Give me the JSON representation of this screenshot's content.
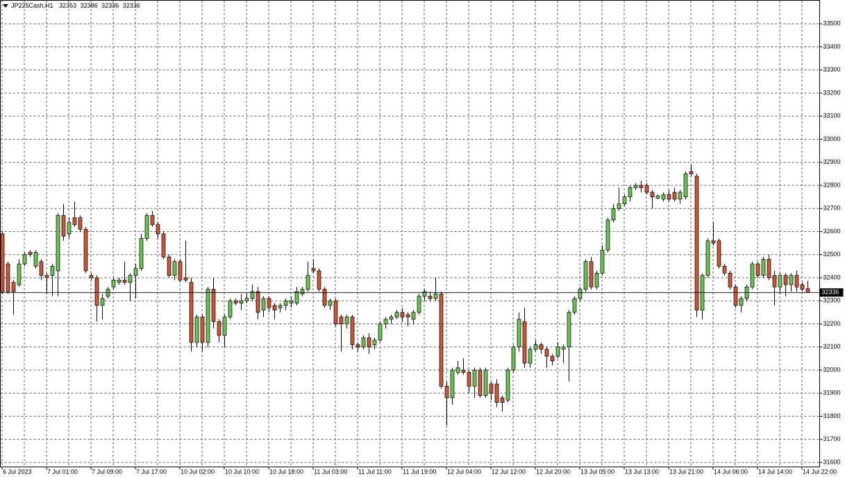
{
  "chart_data": {
    "type": "candlestick",
    "symbol": "JP225Cash,H1",
    "categories": [
      "6 Jul 2023",
      null,
      null,
      null,
      null,
      null,
      null,
      null,
      "7 Jul 01:00",
      null,
      null,
      null,
      null,
      null,
      null,
      null,
      "7 Jul 09:00",
      null,
      null,
      null,
      null,
      null,
      null,
      null,
      "7 Jul 17:00",
      null,
      null,
      null,
      null,
      null,
      null,
      null,
      "10 Jul 02:00",
      null,
      null,
      null,
      null,
      null,
      null,
      null,
      "10 Jul 10:00",
      null,
      null,
      null,
      null,
      null,
      null,
      null,
      "10 Jul 18:00",
      null,
      null,
      null,
      null,
      null,
      null,
      null,
      "11 Jul 03:00",
      null,
      null,
      null,
      null,
      null,
      null,
      null,
      "11 Jul 11:00",
      null,
      null,
      null,
      null,
      null,
      null,
      null,
      "11 Jul 19:00",
      null,
      null,
      null,
      null,
      null,
      null,
      null,
      "12 Jul 04:00",
      null,
      null,
      null,
      null,
      null,
      null,
      null,
      "12 Jul 12:00",
      null,
      null,
      null,
      null,
      null,
      null,
      null,
      "12 Jul 20:00",
      null,
      null,
      null,
      null,
      null,
      null,
      null,
      "13 Jul 05:00",
      null,
      null,
      null,
      null,
      null,
      null,
      null,
      "13 Jul 13:00",
      null,
      null,
      null,
      null,
      null,
      null,
      null,
      "13 Jul 21:00",
      null,
      null,
      null,
      null,
      null,
      null,
      null,
      "14 Jul 06:00",
      null,
      null,
      null,
      null,
      null,
      null,
      null,
      "14 Jul 14:00",
      null,
      null,
      null,
      null,
      null,
      null,
      null,
      "14 Jul 22:00",
      null
    ],
    "open": [
      32590,
      32460,
      32380,
      32370,
      32460,
      32510,
      32450,
      32470,
      32410,
      32410,
      32430,
      32670,
      32590,
      32660,
      32660,
      32610,
      32410,
      32400,
      32280,
      32320,
      32360,
      32380,
      32390,
      32380,
      32410,
      32440,
      32570,
      32670,
      32630,
      32590,
      32490,
      32410,
      32470,
      32400,
      32380,
      32120,
      32230,
      32120,
      32350,
      32210,
      32150,
      32230,
      32300,
      32290,
      32300,
      32310,
      32340,
      32260,
      32310,
      32280,
      32270,
      32280,
      32290,
      32290,
      32330,
      32350,
      32440,
      32430,
      32350,
      32280,
      32300,
      32230,
      32200,
      32230,
      32110,
      32100,
      32140,
      32110,
      32130,
      32200,
      32220,
      32230,
      32250,
      32240,
      32220,
      32250,
      32320,
      32320,
      32310,
      32330,
      31930,
      31880,
      31990,
      32000,
      31990,
      31930,
      32000,
      31890,
      31940,
      31940,
      31880,
      31870,
      32000,
      32100,
      32210,
      32030,
      32090,
      32110,
      32090,
      32060,
      32060,
      32090,
      32100,
      32250,
      32310,
      32350,
      32470,
      32360,
      32420,
      32520,
      32650,
      32700,
      32720,
      32750,
      32790,
      32800,
      32800,
      32770,
      32745,
      32740,
      32760,
      32770,
      32740,
      32750,
      32860,
      32840,
      32260,
      32410,
      32560,
      32560,
      32450,
      32420,
      32360,
      32280,
      32310,
      32360,
      32460,
      32410,
      32480,
      32410,
      32360,
      32410,
      32370,
      32410,
      32370,
      32353
    ],
    "high": [
      32600,
      32470,
      32390,
      32480,
      32510,
      32520,
      32520,
      32480,
      32420,
      32460,
      32680,
      32720,
      32660,
      32730,
      32670,
      32620,
      32420,
      32410,
      32330,
      32360,
      32400,
      32400,
      32470,
      32420,
      32460,
      32590,
      32680,
      32690,
      32640,
      32600,
      32500,
      32480,
      32480,
      32560,
      32400,
      32240,
      32240,
      32360,
      32400,
      32220,
      32240,
      32310,
      32310,
      32330,
      32330,
      32370,
      32360,
      32320,
      32320,
      32290,
      32290,
      32310,
      32320,
      32360,
      32360,
      32470,
      32480,
      32440,
      32360,
      32310,
      32310,
      32240,
      32240,
      32240,
      32120,
      32150,
      32160,
      32140,
      32210,
      32230,
      32240,
      32260,
      32270,
      32250,
      32260,
      32330,
      32350,
      32340,
      32400,
      32340,
      31950,
      32010,
      32040,
      32050,
      32000,
      32010,
      32010,
      32010,
      31950,
      31960,
      31890,
      32010,
      32110,
      32250,
      32270,
      32100,
      32130,
      32120,
      32100,
      32070,
      32120,
      32110,
      32260,
      32320,
      32360,
      32480,
      32490,
      32430,
      32540,
      32660,
      32720,
      32790,
      32760,
      32800,
      32810,
      32820,
      32810,
      32780,
      32760,
      32770,
      32780,
      32790,
      32780,
      32860,
      32890,
      32850,
      32420,
      32570,
      32640,
      32570,
      32460,
      32430,
      32370,
      32320,
      32370,
      32470,
      32470,
      32490,
      32500,
      32430,
      32420,
      32420,
      32420,
      32430,
      32380,
      32386
    ],
    "low": [
      32330,
      32330,
      32240,
      32360,
      32450,
      32490,
      32440,
      32390,
      32330,
      32320,
      32320,
      32560,
      32570,
      32620,
      32600,
      32420,
      32390,
      32210,
      32220,
      32310,
      32350,
      32370,
      32370,
      32300,
      32310,
      32430,
      32560,
      32620,
      32570,
      32480,
      32400,
      32390,
      32380,
      32380,
      32080,
      32100,
      32080,
      32100,
      32180,
      32120,
      32100,
      32220,
      32280,
      32260,
      32290,
      32300,
      32220,
      32230,
      32250,
      32220,
      32250,
      32260,
      32270,
      32280,
      32320,
      32340,
      32420,
      32340,
      32270,
      32260,
      32190,
      32080,
      32180,
      32090,
      32080,
      32090,
      32070,
      32090,
      32120,
      32180,
      32200,
      32220,
      32210,
      32190,
      32200,
      32240,
      32300,
      32300,
      32300,
      31920,
      31760,
      31850,
      31980,
      31980,
      31900,
      31880,
      31880,
      31880,
      31870,
      31840,
      31820,
      31860,
      31990,
      32080,
      32010,
      32010,
      32080,
      32070,
      32010,
      32020,
      32050,
      32030,
      31950,
      32240,
      32300,
      32340,
      32350,
      32350,
      32410,
      32510,
      32640,
      32690,
      32710,
      32730,
      32780,
      32770,
      32760,
      32700,
      32740,
      32730,
      32730,
      32730,
      32720,
      32740,
      32840,
      32230,
      32220,
      32400,
      32540,
      32440,
      32410,
      32350,
      32270,
      32250,
      32300,
      32350,
      32400,
      32400,
      32390,
      32280,
      32330,
      32320,
      32340,
      32340,
      32340,
      32336
    ],
    "close": [
      32340,
      32340,
      32340,
      32460,
      32500,
      32500,
      32510,
      32410,
      32400,
      32450,
      32670,
      32580,
      32640,
      32630,
      32610,
      32430,
      32400,
      32280,
      32310,
      32350,
      32390,
      32390,
      32380,
      32410,
      32440,
      32570,
      32670,
      32630,
      32590,
      32490,
      32410,
      32470,
      32390,
      32390,
      32120,
      32230,
      32120,
      32350,
      32210,
      32150,
      32230,
      32300,
      32290,
      32300,
      32310,
      32340,
      32250,
      32310,
      32270,
      32260,
      32280,
      32300,
      32300,
      32340,
      32350,
      32410,
      32430,
      32350,
      32280,
      32300,
      32200,
      32200,
      32230,
      32110,
      32100,
      32140,
      32100,
      32130,
      32200,
      32220,
      32230,
      32250,
      32230,
      32230,
      32250,
      32320,
      32340,
      32310,
      32330,
      31930,
      31880,
      32000,
      32010,
      31990,
      31930,
      32000,
      31890,
      32000,
      31900,
      31860,
      31860,
      32000,
      32100,
      32220,
      32030,
      32090,
      32110,
      32090,
      32060,
      32040,
      32100,
      32100,
      32250,
      32310,
      32350,
      32470,
      32360,
      32420,
      32520,
      32650,
      32700,
      32720,
      32750,
      32790,
      32800,
      32790,
      32770,
      32750,
      32755,
      32760,
      32740,
      32740,
      32770,
      32850,
      32850,
      32260,
      32410,
      32560,
      32550,
      32450,
      32420,
      32360,
      32280,
      32310,
      32360,
      32460,
      32410,
      32480,
      32400,
      32360,
      32410,
      32370,
      32410,
      32360,
      32350,
      32336
    ],
    "up_color": "#6fbf58",
    "down_color": "#c9553a",
    "ylim": [
      31582,
      33600
    ],
    "yticks": [
      31600,
      31700,
      31800,
      31900,
      32000,
      32100,
      32200,
      32300,
      32400,
      32500,
      32600,
      32700,
      32800,
      32900,
      33000,
      33100,
      33200,
      33300,
      33400,
      33500
    ],
    "grid": true
  }
}
